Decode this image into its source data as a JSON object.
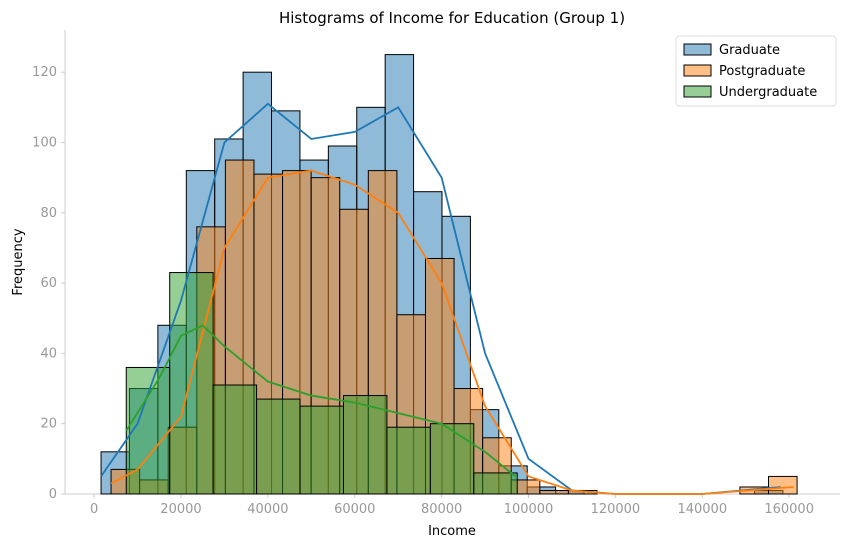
{
  "chart_data": {
    "type": "histogram",
    "title": "Histograms of Income for Education (Group 1)",
    "x_label": "Income",
    "y_label": "Frequency",
    "xlim": [
      -6700,
      171700
    ],
    "ylim": [
      0,
      132
    ],
    "xticks": [
      0,
      20000,
      40000,
      60000,
      80000,
      100000,
      120000,
      140000,
      160000
    ],
    "yticks": [
      0,
      20,
      40,
      60,
      80,
      100,
      120
    ],
    "legend": "upper right",
    "series": [
      {
        "name": "Graduate",
        "color": "#1f77b4",
        "bins": [
          1600,
          8140,
          14680,
          21220,
          27760,
          34300,
          40840,
          47380,
          53920,
          60460,
          67000,
          73540,
          80080,
          86620,
          93160,
          99700,
          106240,
          112780,
          119320,
          125860,
          132400,
          138940,
          145480,
          152020,
          158560
        ],
        "counts": [
          12,
          30,
          48,
          92,
          101,
          120,
          109,
          95,
          99,
          110,
          125,
          86,
          79,
          24,
          8,
          2,
          1,
          0,
          0,
          0,
          0,
          0,
          0,
          1
        ],
        "kde_x": [
          1600,
          10000,
          20000,
          30000,
          40000,
          50000,
          60000,
          70000,
          80000,
          90000,
          100000,
          110000,
          120000,
          140000,
          158000
        ],
        "kde_y": [
          5,
          20,
          55,
          100,
          111,
          101,
          103,
          110,
          90,
          40,
          10,
          1,
          0,
          0,
          2
        ]
      },
      {
        "name": "Postgraduate",
        "color": "#ff7f0e",
        "bins": [
          3900,
          10480,
          17060,
          23640,
          30220,
          36800,
          43380,
          49960,
          56540,
          63120,
          69700,
          76280,
          82860,
          89440,
          96020,
          102600,
          109180,
          115760,
          122340,
          128920,
          135500,
          142080,
          148660,
          155240,
          161820
        ],
        "counts": [
          7,
          4,
          19,
          76,
          95,
          91,
          92,
          90,
          81,
          92,
          51,
          67,
          30,
          16,
          4,
          1,
          1,
          0,
          0,
          0,
          0,
          0,
          2,
          5
        ],
        "kde_x": [
          3900,
          10000,
          20000,
          30000,
          40000,
          50000,
          60000,
          70000,
          80000,
          90000,
          100000,
          110000,
          120000,
          140000,
          161000
        ],
        "kde_y": [
          3,
          7,
          22,
          70,
          90,
          92,
          88,
          80,
          60,
          25,
          5,
          1,
          0,
          0,
          2
        ]
      },
      {
        "name": "Undergraduate",
        "color": "#2ca02c",
        "bins": [
          7400,
          17400,
          27400,
          37400,
          47400,
          57400,
          67400,
          77400,
          87400,
          97400
        ],
        "counts": [
          36,
          63,
          31,
          27,
          25,
          28,
          19,
          20,
          6
        ],
        "kde_x": [
          7400,
          15000,
          20000,
          25000,
          30000,
          40000,
          50000,
          60000,
          70000,
          80000,
          90000,
          97000
        ],
        "kde_y": [
          18,
          33,
          45,
          48,
          42,
          32,
          28,
          26,
          23,
          20,
          12,
          5
        ]
      }
    ]
  }
}
